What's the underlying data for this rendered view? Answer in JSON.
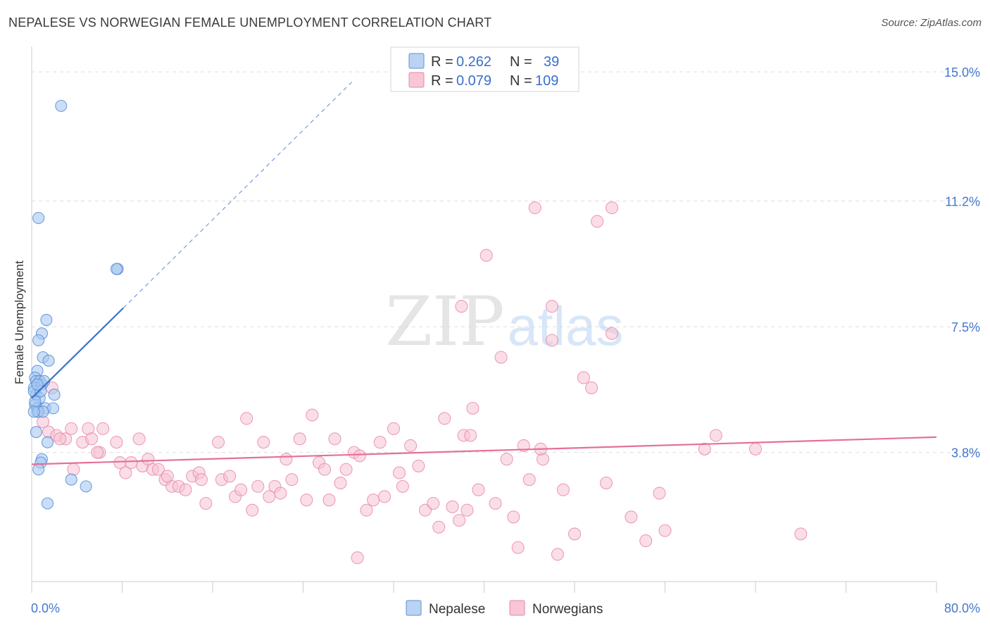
{
  "header": {
    "title": "NEPALESE VS NORWEGIAN FEMALE UNEMPLOYMENT CORRELATION CHART",
    "source": "Source: ZipAtlas.com"
  },
  "watermark": {
    "zip": "ZIP",
    "atlas": "atlas"
  },
  "legend": {
    "rows": [
      {
        "r_label": "R =",
        "r_value": "0.262",
        "n_label": "N =",
        "n_value": "39",
        "color": "#a9c8f0"
      },
      {
        "r_label": "R =",
        "r_value": "0.079",
        "n_label": "N =",
        "n_value": "109",
        "color": "#f6b8cb"
      }
    ]
  },
  "colors": {
    "nepalese_fill": "#a9c8f0",
    "nepalese_stroke": "#5b8fd6",
    "nepalese_line": "#3a73cf",
    "norwegian_fill": "#f6c3d3",
    "norwegian_stroke": "#e987a8",
    "norwegian_line": "#e4709a",
    "tick_label": "#4477cc"
  },
  "chart_data": {
    "type": "scatter",
    "title": "NEPALESE VS NORWEGIAN FEMALE UNEMPLOYMENT CORRELATION CHART",
    "xlabel": "",
    "ylabel": "Female Unemployment",
    "xlim": [
      0,
      80
    ],
    "ylim": [
      0,
      15.5
    ],
    "x_tick_labels": [
      "0.0%",
      "80.0%"
    ],
    "y_ticks": [
      3.8,
      7.5,
      11.2,
      15.0
    ],
    "y_tick_labels": [
      "3.8%",
      "7.5%",
      "11.2%",
      "15.0%"
    ],
    "grid": true,
    "legend_position": "top-center",
    "series": [
      {
        "name": "Nepalese",
        "r": 0.262,
        "n": 39,
        "trend": {
          "x": [
            0,
            8.1
          ],
          "y": [
            5.4,
            8.05
          ],
          "extended_to": [
            28.3,
            14.7
          ]
        },
        "points": [
          [
            2.6,
            14.0
          ],
          [
            0.6,
            10.7
          ],
          [
            7.6,
            9.2
          ],
          [
            7.5,
            9.2
          ],
          [
            1.3,
            7.7
          ],
          [
            0.9,
            7.3
          ],
          [
            0.6,
            7.1
          ],
          [
            1.0,
            6.6
          ],
          [
            1.5,
            6.5
          ],
          [
            0.5,
            6.2
          ],
          [
            0.3,
            6.0
          ],
          [
            0.4,
            5.9
          ],
          [
            0.7,
            5.9
          ],
          [
            0.2,
            5.7
          ],
          [
            0.9,
            5.8
          ],
          [
            0.4,
            5.5
          ],
          [
            2.0,
            5.5
          ],
          [
            0.7,
            5.4
          ],
          [
            0.3,
            5.2
          ],
          [
            0.5,
            5.1
          ],
          [
            1.2,
            5.1
          ],
          [
            1.9,
            5.1
          ],
          [
            0.5,
            5.0
          ],
          [
            0.6,
            5.0
          ],
          [
            1.0,
            5.0
          ],
          [
            0.4,
            4.4
          ],
          [
            1.4,
            4.1
          ],
          [
            0.9,
            3.6
          ],
          [
            0.8,
            3.5
          ],
          [
            0.6,
            3.3
          ],
          [
            3.5,
            3.0
          ],
          [
            4.8,
            2.8
          ],
          [
            1.4,
            2.3
          ],
          [
            0.2,
            5.6
          ],
          [
            0.3,
            5.3
          ],
          [
            0.8,
            5.6
          ],
          [
            1.1,
            5.9
          ],
          [
            0.2,
            5.0
          ],
          [
            0.5,
            5.8
          ]
        ]
      },
      {
        "name": "Norwegians",
        "r": 0.079,
        "n": 109,
        "trend": {
          "x": [
            0,
            80
          ],
          "y": [
            3.45,
            4.25
          ]
        },
        "points": [
          [
            1.0,
            4.7
          ],
          [
            1.5,
            4.4
          ],
          [
            2.2,
            4.3
          ],
          [
            3.0,
            4.2
          ],
          [
            3.5,
            4.5
          ],
          [
            4.5,
            4.1
          ],
          [
            5.0,
            4.5
          ],
          [
            5.3,
            4.2
          ],
          [
            6.3,
            4.5
          ],
          [
            6.0,
            3.8
          ],
          [
            5.8,
            3.8
          ],
          [
            7.5,
            4.1
          ],
          [
            9.5,
            4.2
          ],
          [
            7.8,
            3.5
          ],
          [
            8.3,
            3.2
          ],
          [
            8.8,
            3.5
          ],
          [
            9.8,
            3.4
          ],
          [
            10.3,
            3.6
          ],
          [
            10.7,
            3.3
          ],
          [
            11.2,
            3.3
          ],
          [
            11.8,
            3.0
          ],
          [
            12.4,
            2.8
          ],
          [
            13.0,
            2.8
          ],
          [
            13.6,
            2.7
          ],
          [
            14.2,
            3.1
          ],
          [
            14.8,
            3.2
          ],
          [
            15.4,
            2.3
          ],
          [
            16.5,
            4.1
          ],
          [
            16.8,
            3.0
          ],
          [
            17.5,
            3.1
          ],
          [
            18.0,
            2.5
          ],
          [
            18.5,
            2.7
          ],
          [
            19.0,
            4.8
          ],
          [
            19.5,
            2.1
          ],
          [
            20.0,
            2.8
          ],
          [
            20.5,
            4.1
          ],
          [
            21.0,
            2.5
          ],
          [
            21.5,
            2.8
          ],
          [
            22.0,
            2.6
          ],
          [
            22.5,
            3.6
          ],
          [
            23.0,
            3.0
          ],
          [
            23.7,
            4.2
          ],
          [
            24.3,
            2.4
          ],
          [
            24.8,
            4.9
          ],
          [
            25.4,
            3.5
          ],
          [
            25.9,
            3.3
          ],
          [
            26.3,
            2.4
          ],
          [
            26.8,
            4.2
          ],
          [
            27.3,
            2.9
          ],
          [
            27.8,
            3.3
          ],
          [
            28.5,
            3.8
          ],
          [
            29.0,
            3.7
          ],
          [
            29.6,
            2.1
          ],
          [
            30.2,
            2.4
          ],
          [
            30.8,
            4.1
          ],
          [
            31.2,
            2.5
          ],
          [
            32.0,
            4.5
          ],
          [
            32.5,
            3.2
          ],
          [
            32.8,
            2.8
          ],
          [
            33.5,
            4.0
          ],
          [
            34.2,
            3.4
          ],
          [
            34.8,
            2.1
          ],
          [
            35.5,
            2.3
          ],
          [
            36.0,
            1.6
          ],
          [
            36.5,
            4.8
          ],
          [
            37.2,
            2.2
          ],
          [
            37.8,
            1.8
          ],
          [
            38.5,
            2.1
          ],
          [
            38.2,
            4.3
          ],
          [
            39.0,
            5.1
          ],
          [
            39.5,
            2.7
          ],
          [
            40.2,
            9.6
          ],
          [
            41.0,
            2.3
          ],
          [
            41.5,
            6.6
          ],
          [
            42.0,
            3.6
          ],
          [
            42.6,
            1.9
          ],
          [
            43.0,
            1.0
          ],
          [
            43.5,
            4.0
          ],
          [
            44.0,
            3.0
          ],
          [
            44.5,
            11.0
          ],
          [
            45.2,
            3.6
          ],
          [
            46.0,
            7.1
          ],
          [
            46.5,
            0.8
          ],
          [
            47.0,
            2.7
          ],
          [
            48.0,
            1.4
          ],
          [
            48.8,
            6.0
          ],
          [
            49.5,
            5.7
          ],
          [
            50.0,
            10.6
          ],
          [
            50.8,
            2.9
          ],
          [
            51.3,
            7.3
          ],
          [
            53.0,
            1.9
          ],
          [
            54.3,
            1.2
          ],
          [
            55.5,
            2.6
          ],
          [
            56.0,
            1.5
          ],
          [
            59.5,
            3.9
          ],
          [
            64.0,
            3.9
          ],
          [
            38.8,
            4.3
          ],
          [
            45.0,
            3.9
          ],
          [
            60.5,
            4.3
          ],
          [
            68.0,
            1.4
          ],
          [
            38.0,
            8.1
          ],
          [
            46.0,
            8.1
          ],
          [
            51.3,
            11.0
          ],
          [
            28.8,
            0.7
          ],
          [
            1.8,
            5.7
          ],
          [
            2.5,
            4.2
          ],
          [
            3.7,
            3.3
          ],
          [
            15.0,
            3.0
          ],
          [
            12.0,
            3.1
          ]
        ]
      }
    ]
  },
  "bottom_legend": {
    "items": [
      "Nepalese",
      "Norwegians"
    ]
  }
}
